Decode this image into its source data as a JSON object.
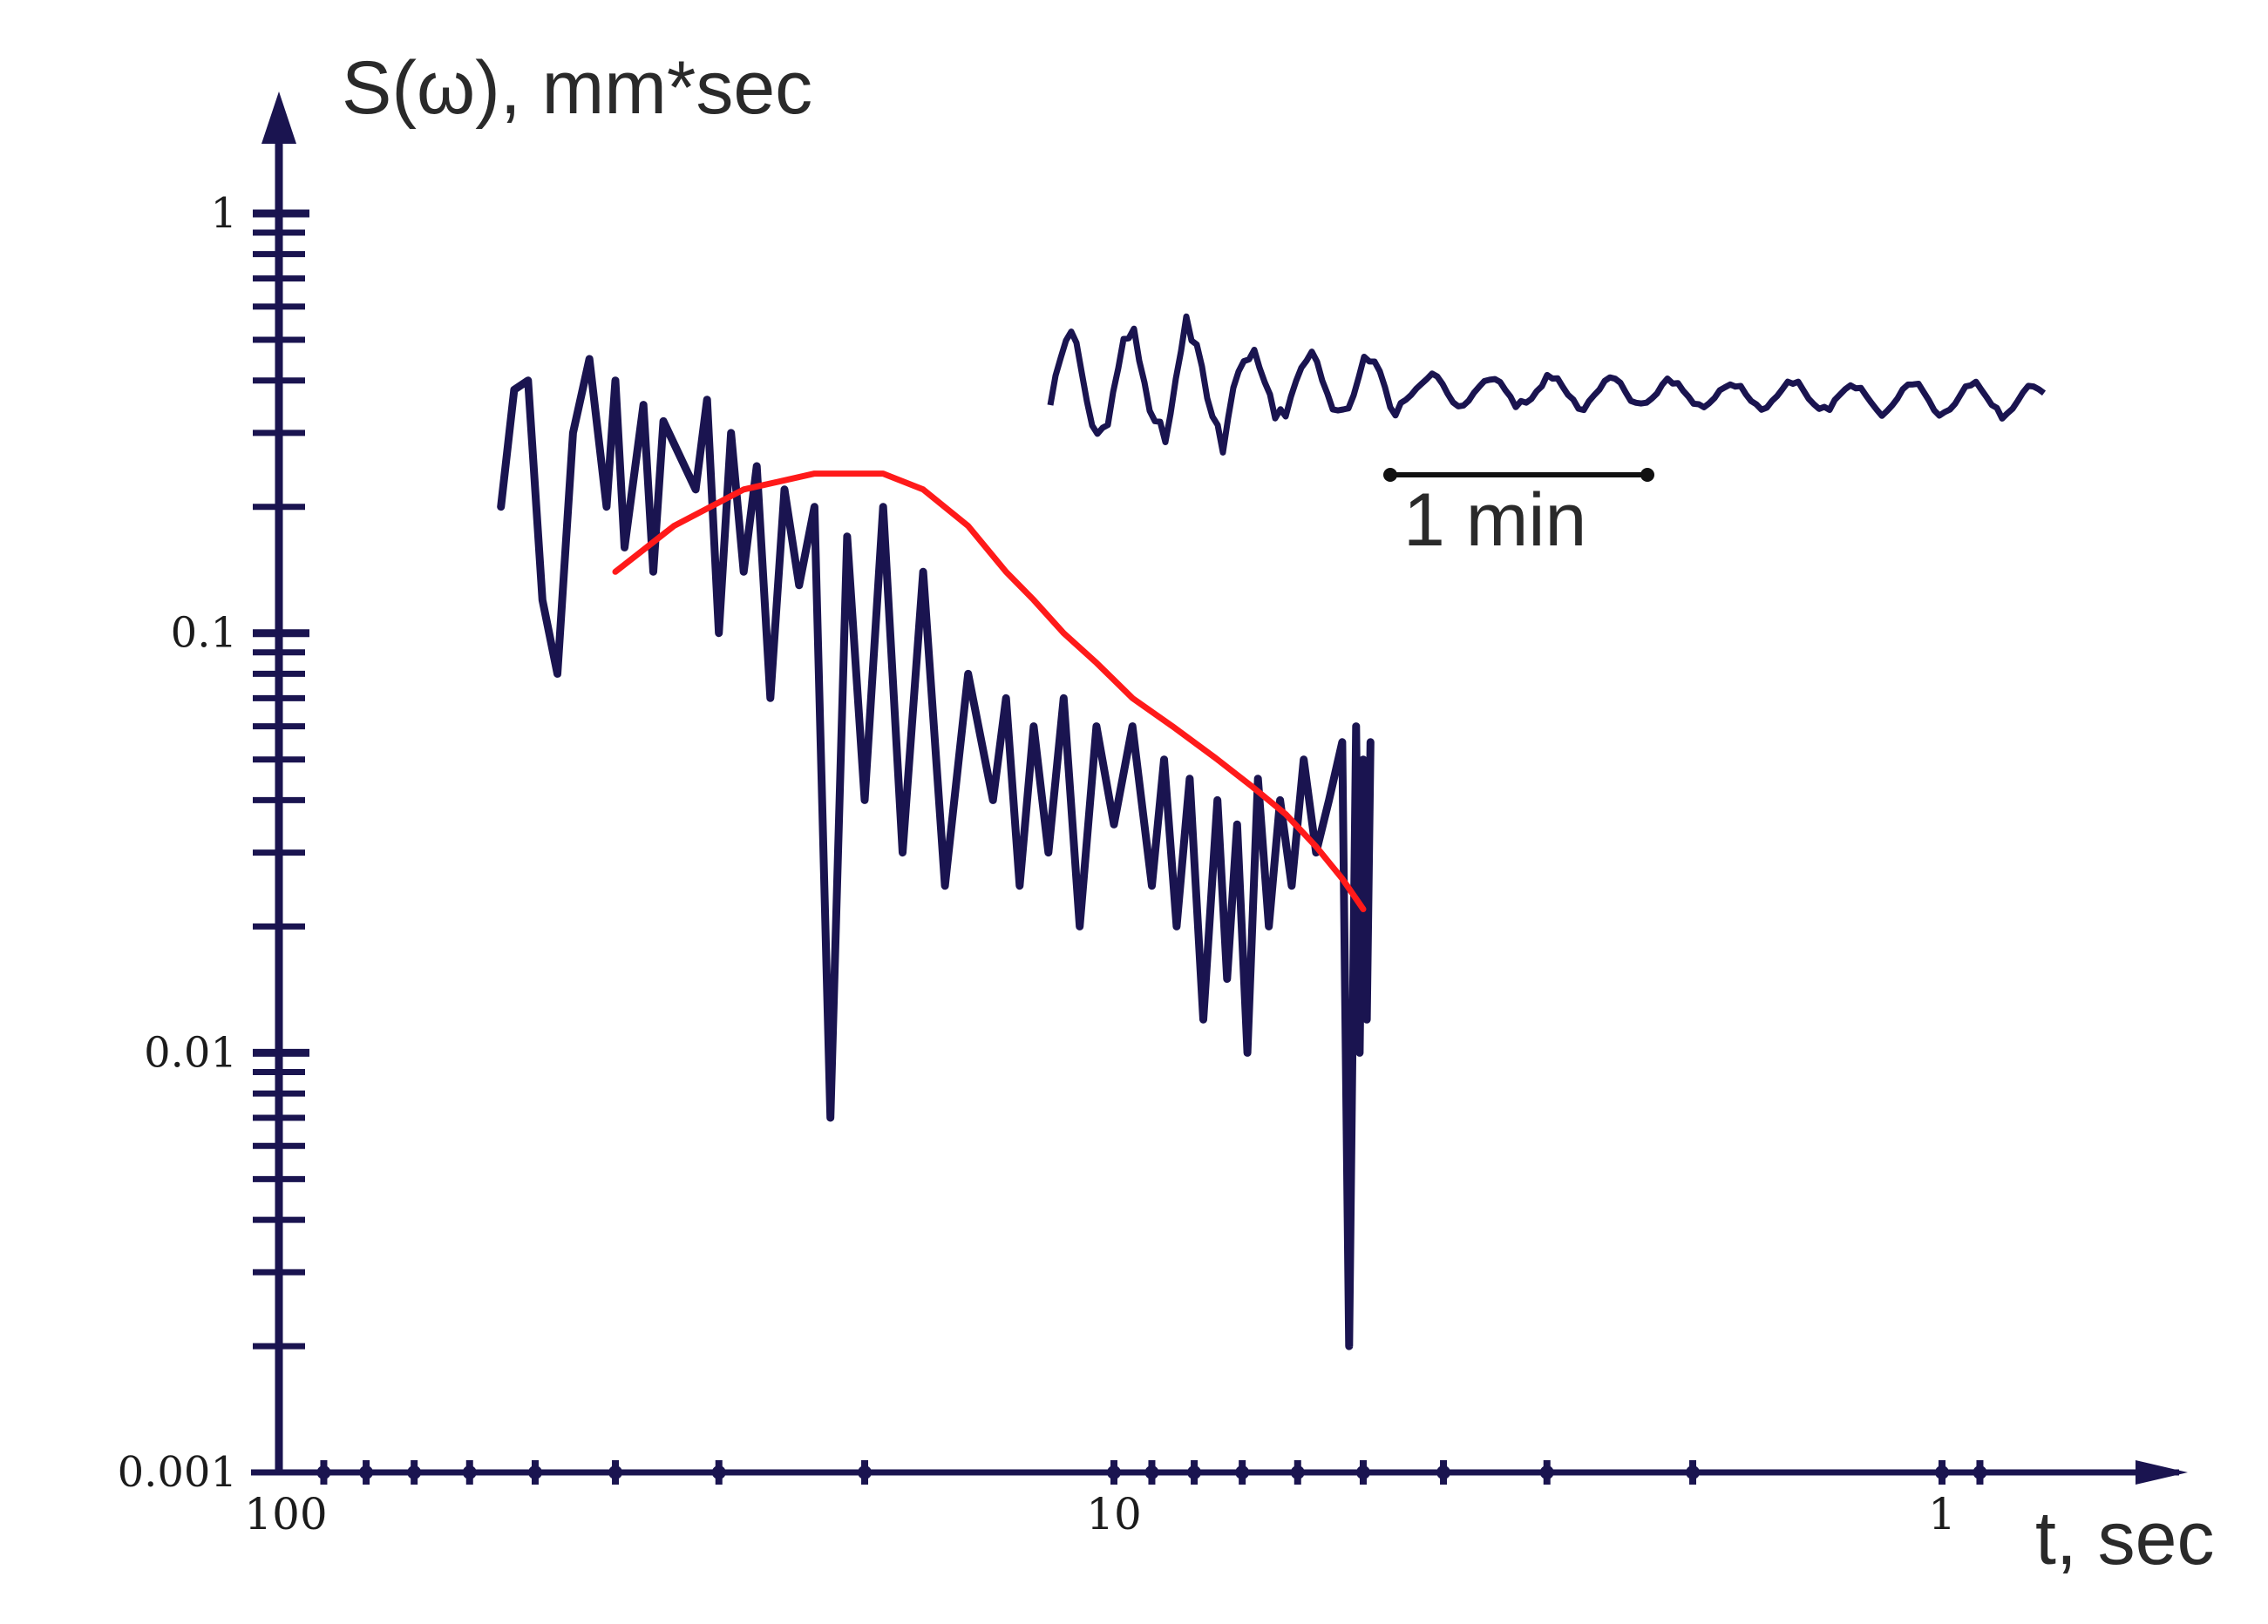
{
  "chart_data": {
    "type": "line",
    "title": "",
    "ylabel": "S(ω), mm*sec",
    "xlabel": "t, sec",
    "x_scale": "log-reversed",
    "y_scale": "log",
    "xlim": [
      100,
      0.9
    ],
    "ylim": [
      0.001,
      1
    ],
    "grid": false,
    "x_ticks": [
      {
        "value": 100,
        "label": "100"
      },
      {
        "value": 10,
        "label": "10"
      },
      {
        "value": 1,
        "label": "1"
      }
    ],
    "y_ticks": [
      {
        "value": 1,
        "label": "1"
      },
      {
        "value": 0.1,
        "label": "0.1"
      },
      {
        "value": 0.01,
        "label": "0.01"
      },
      {
        "value": 0.001,
        "label": "0.001"
      }
    ],
    "scale_bar_label": "1 min",
    "colors": {
      "axis": "#1a1450",
      "spectrum": "#1a1450",
      "fit": "#ff1a1a",
      "inset": "#1a1450"
    },
    "series": [
      {
        "role": "spectrum",
        "x": [
          55,
          53,
          51,
          49,
          47,
          45,
          43,
          41,
          40,
          39,
          37,
          36,
          35,
          33,
          32,
          31,
          30,
          29,
          28,
          27,
          26,
          25,
          24,
          23,
          22,
          21,
          20,
          19,
          18,
          17,
          16,
          15,
          14,
          13.5,
          13,
          12.5,
          12,
          11.5,
          11,
          10.5,
          10,
          9.5,
          9,
          8.7,
          8.4,
          8.1,
          7.8,
          7.5,
          7.3,
          7.1,
          6.9,
          6.7,
          6.5,
          6.3,
          6.1,
          5.9,
          5.7,
          5.5,
          5.3,
          5.2,
          5.1,
          5.05,
          5,
          4.95,
          4.9
        ],
        "y": [
          0.2,
          0.38,
          0.4,
          0.12,
          0.08,
          0.3,
          0.45,
          0.2,
          0.4,
          0.16,
          0.35,
          0.14,
          0.32,
          0.25,
          0.22,
          0.36,
          0.1,
          0.3,
          0.14,
          0.25,
          0.07,
          0.22,
          0.13,
          0.2,
          0.007,
          0.17,
          0.04,
          0.2,
          0.03,
          0.14,
          0.025,
          0.08,
          0.04,
          0.07,
          0.025,
          0.06,
          0.03,
          0.07,
          0.02,
          0.06,
          0.035,
          0.06,
          0.025,
          0.05,
          0.02,
          0.045,
          0.012,
          0.04,
          0.015,
          0.035,
          0.01,
          0.045,
          0.02,
          0.04,
          0.025,
          0.05,
          0.03,
          0.04,
          0.055,
          0.002,
          0.06,
          0.01,
          0.05,
          0.012,
          0.055
        ]
      },
      {
        "role": "fit",
        "x": [
          40,
          34,
          28,
          23,
          19,
          17,
          15,
          13.5,
          12.5,
          11.5,
          10.5,
          9.5,
          8.5,
          7.5,
          6.8,
          6.2,
          5.7,
          5.3,
          5.0
        ],
        "y": [
          0.14,
          0.18,
          0.22,
          0.24,
          0.24,
          0.22,
          0.18,
          0.14,
          0.12,
          0.1,
          0.085,
          0.07,
          0.06,
          0.05,
          0.043,
          0.037,
          0.031,
          0.026,
          0.022
        ]
      }
    ],
    "inset_trace": {
      "caption": "1 min"
    }
  }
}
